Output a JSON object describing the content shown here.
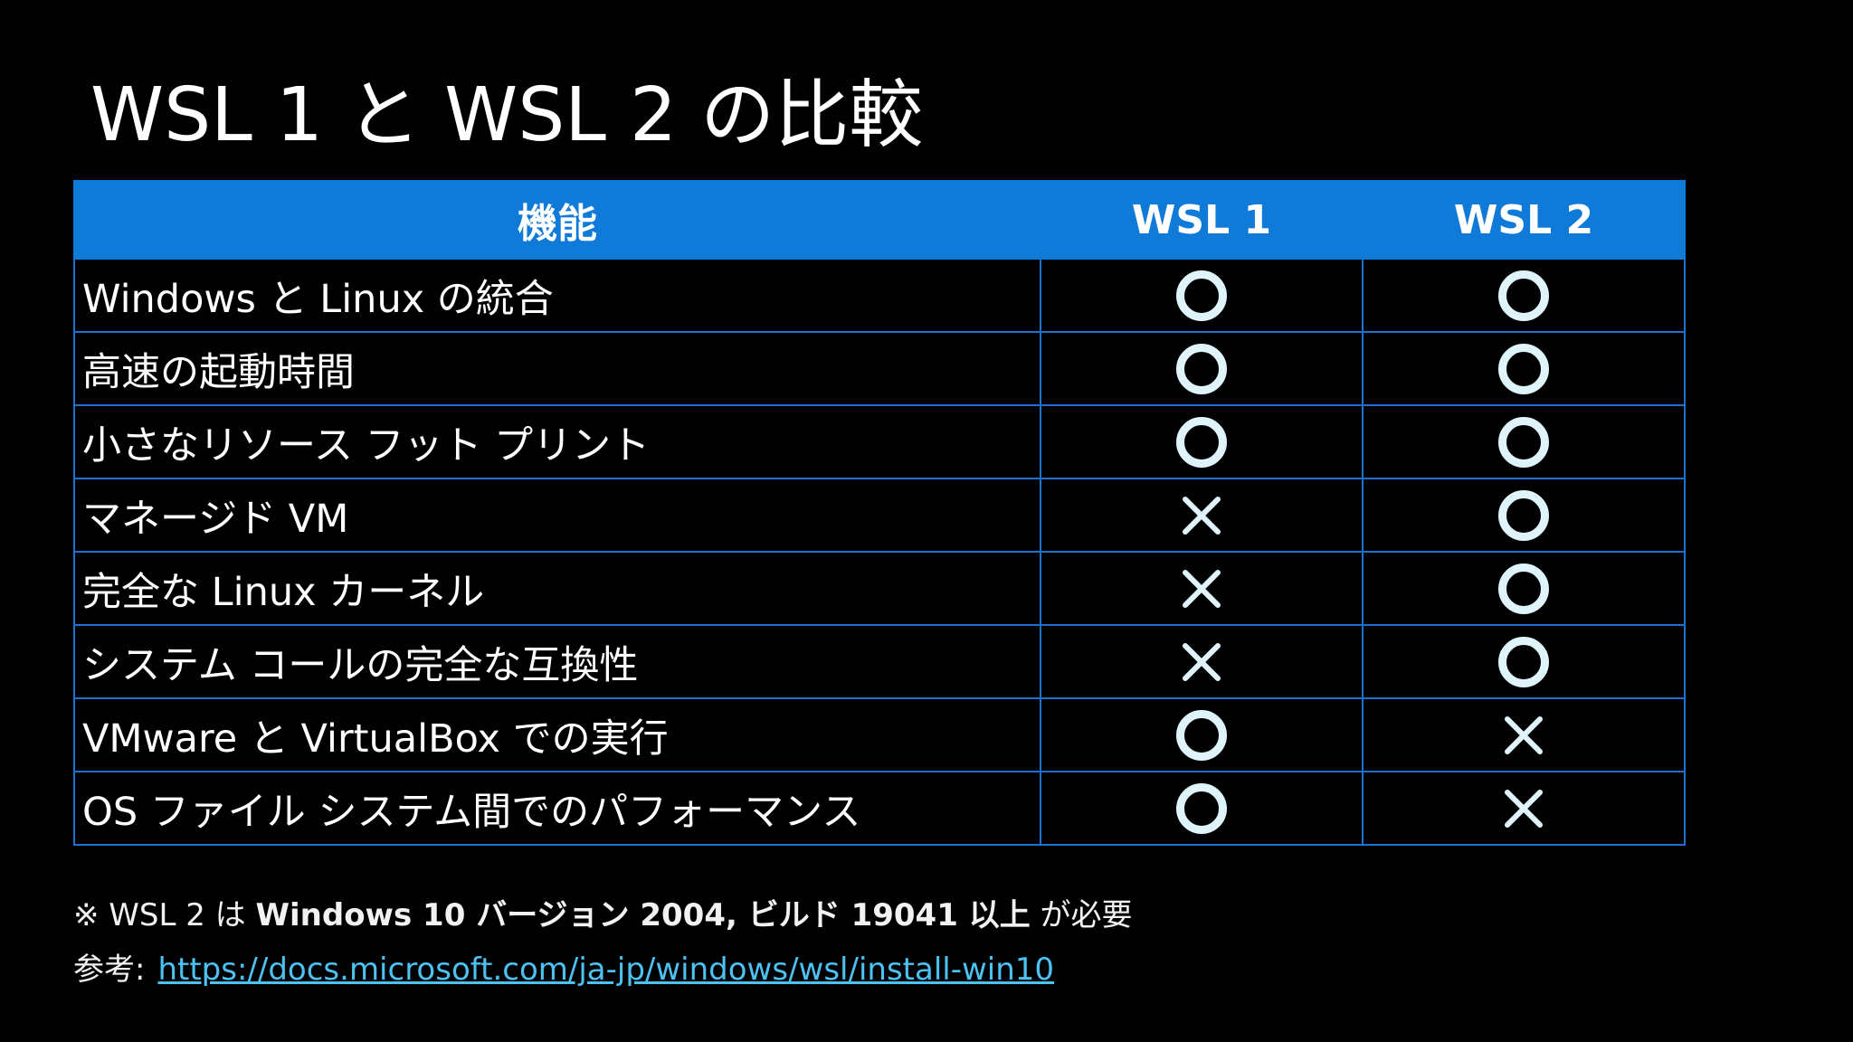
{
  "title": "WSL 1 と WSL 2 の比較",
  "table": {
    "headers": [
      "機能",
      "WSL 1",
      "WSL 2"
    ],
    "rows": [
      {
        "feature": "Windows と Linux の統合",
        "wsl1": "circle",
        "wsl2": "circle"
      },
      {
        "feature": "高速の起動時間",
        "wsl1": "circle",
        "wsl2": "circle"
      },
      {
        "feature": "小さなリソース フット プリント",
        "wsl1": "circle",
        "wsl2": "circle"
      },
      {
        "feature": "マネージド VM",
        "wsl1": "cross",
        "wsl2": "circle"
      },
      {
        "feature": "完全な Linux カーネル",
        "wsl1": "cross",
        "wsl2": "circle"
      },
      {
        "feature": "システム コールの完全な互換性",
        "wsl1": "cross",
        "wsl2": "circle"
      },
      {
        "feature": "VMware と VirtualBox での実行",
        "wsl1": "circle",
        "wsl2": "cross"
      },
      {
        "feature": "OS ファイル システム間でのパフォーマンス",
        "wsl1": "circle",
        "wsl2": "cross"
      }
    ]
  },
  "note": {
    "prefix": "※ WSL 2 は",
    "bold": "Windows 10 バージョン 2004, ビルド 19041 以上",
    "suffix": "が必要"
  },
  "reference": {
    "label": "参考:",
    "link_text": "https://docs.microsoft.com/ja-jp/windows/wsl/install-win10"
  },
  "colors": {
    "background": "#000000",
    "header_background": "#0f7ad8",
    "grid_line": "#1e6fcf",
    "mark": "#dff3fb",
    "link": "#4cc2f2"
  },
  "icons": {
    "circle": "circle-mark-icon",
    "cross": "cross-mark-icon"
  }
}
